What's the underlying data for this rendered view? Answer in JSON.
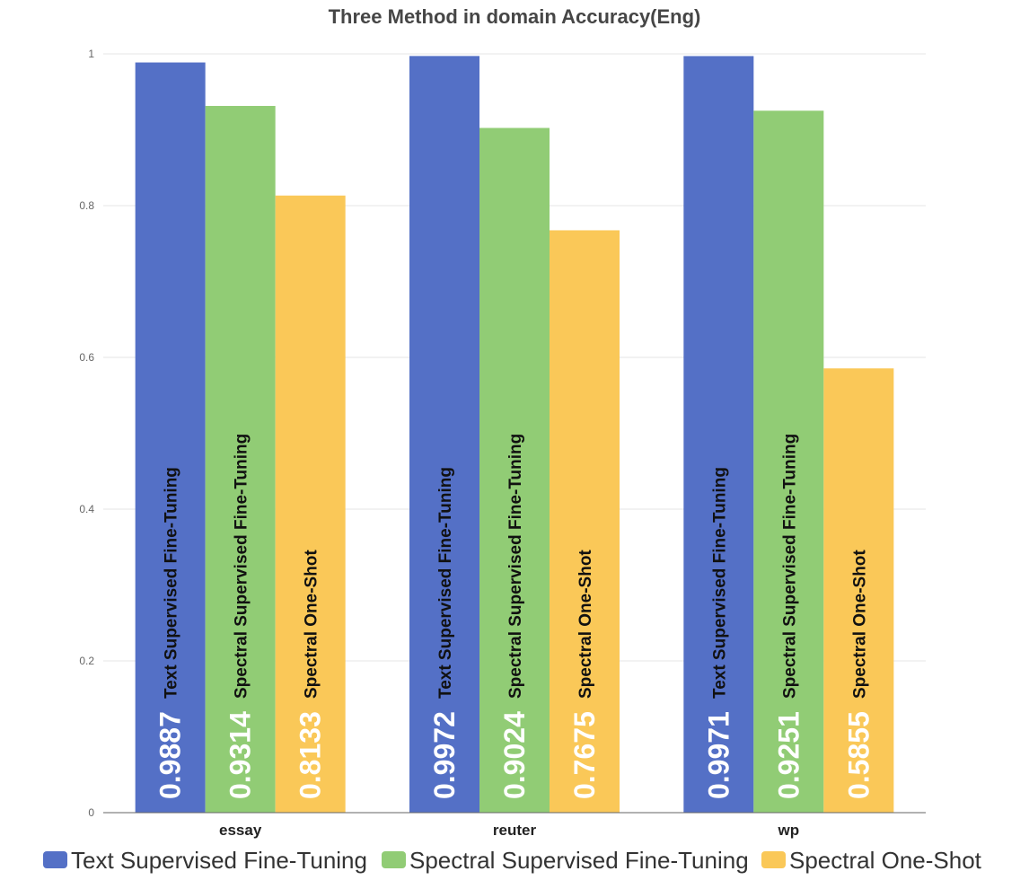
{
  "chart_data": {
    "type": "bar",
    "title": "Three Method in domain Accuracy(Eng)",
    "xlabel": "",
    "ylabel": "",
    "categories": [
      "essay",
      "reuter",
      "wp"
    ],
    "series": [
      {
        "name": "Text Supervised Fine-Tuning",
        "color": "#5470c6",
        "values": [
          0.9887,
          0.9972,
          0.9971
        ],
        "value_labels": [
          "0.9887",
          "0.9972",
          "0.9971"
        ]
      },
      {
        "name": "Spectral Supervised Fine-Tuning",
        "color": "#91cc75",
        "values": [
          0.9314,
          0.9024,
          0.9251
        ],
        "value_labels": [
          "0.9314",
          "0.9024",
          "0.9251"
        ]
      },
      {
        "name": "Spectral One-Shot",
        "color": "#fac858",
        "values": [
          0.8133,
          0.7675,
          0.5855
        ],
        "value_labels": [
          "0.8133",
          "0.7675",
          "0.5855"
        ]
      }
    ],
    "ylim": [
      0,
      1
    ],
    "yticks": [
      0,
      0.2,
      0.4,
      0.6,
      0.8,
      1
    ],
    "ytick_labels": [
      "0",
      "0.2",
      "0.4",
      "0.6",
      "0.8",
      "1"
    ],
    "grid": true,
    "legend_position": "bottom"
  }
}
